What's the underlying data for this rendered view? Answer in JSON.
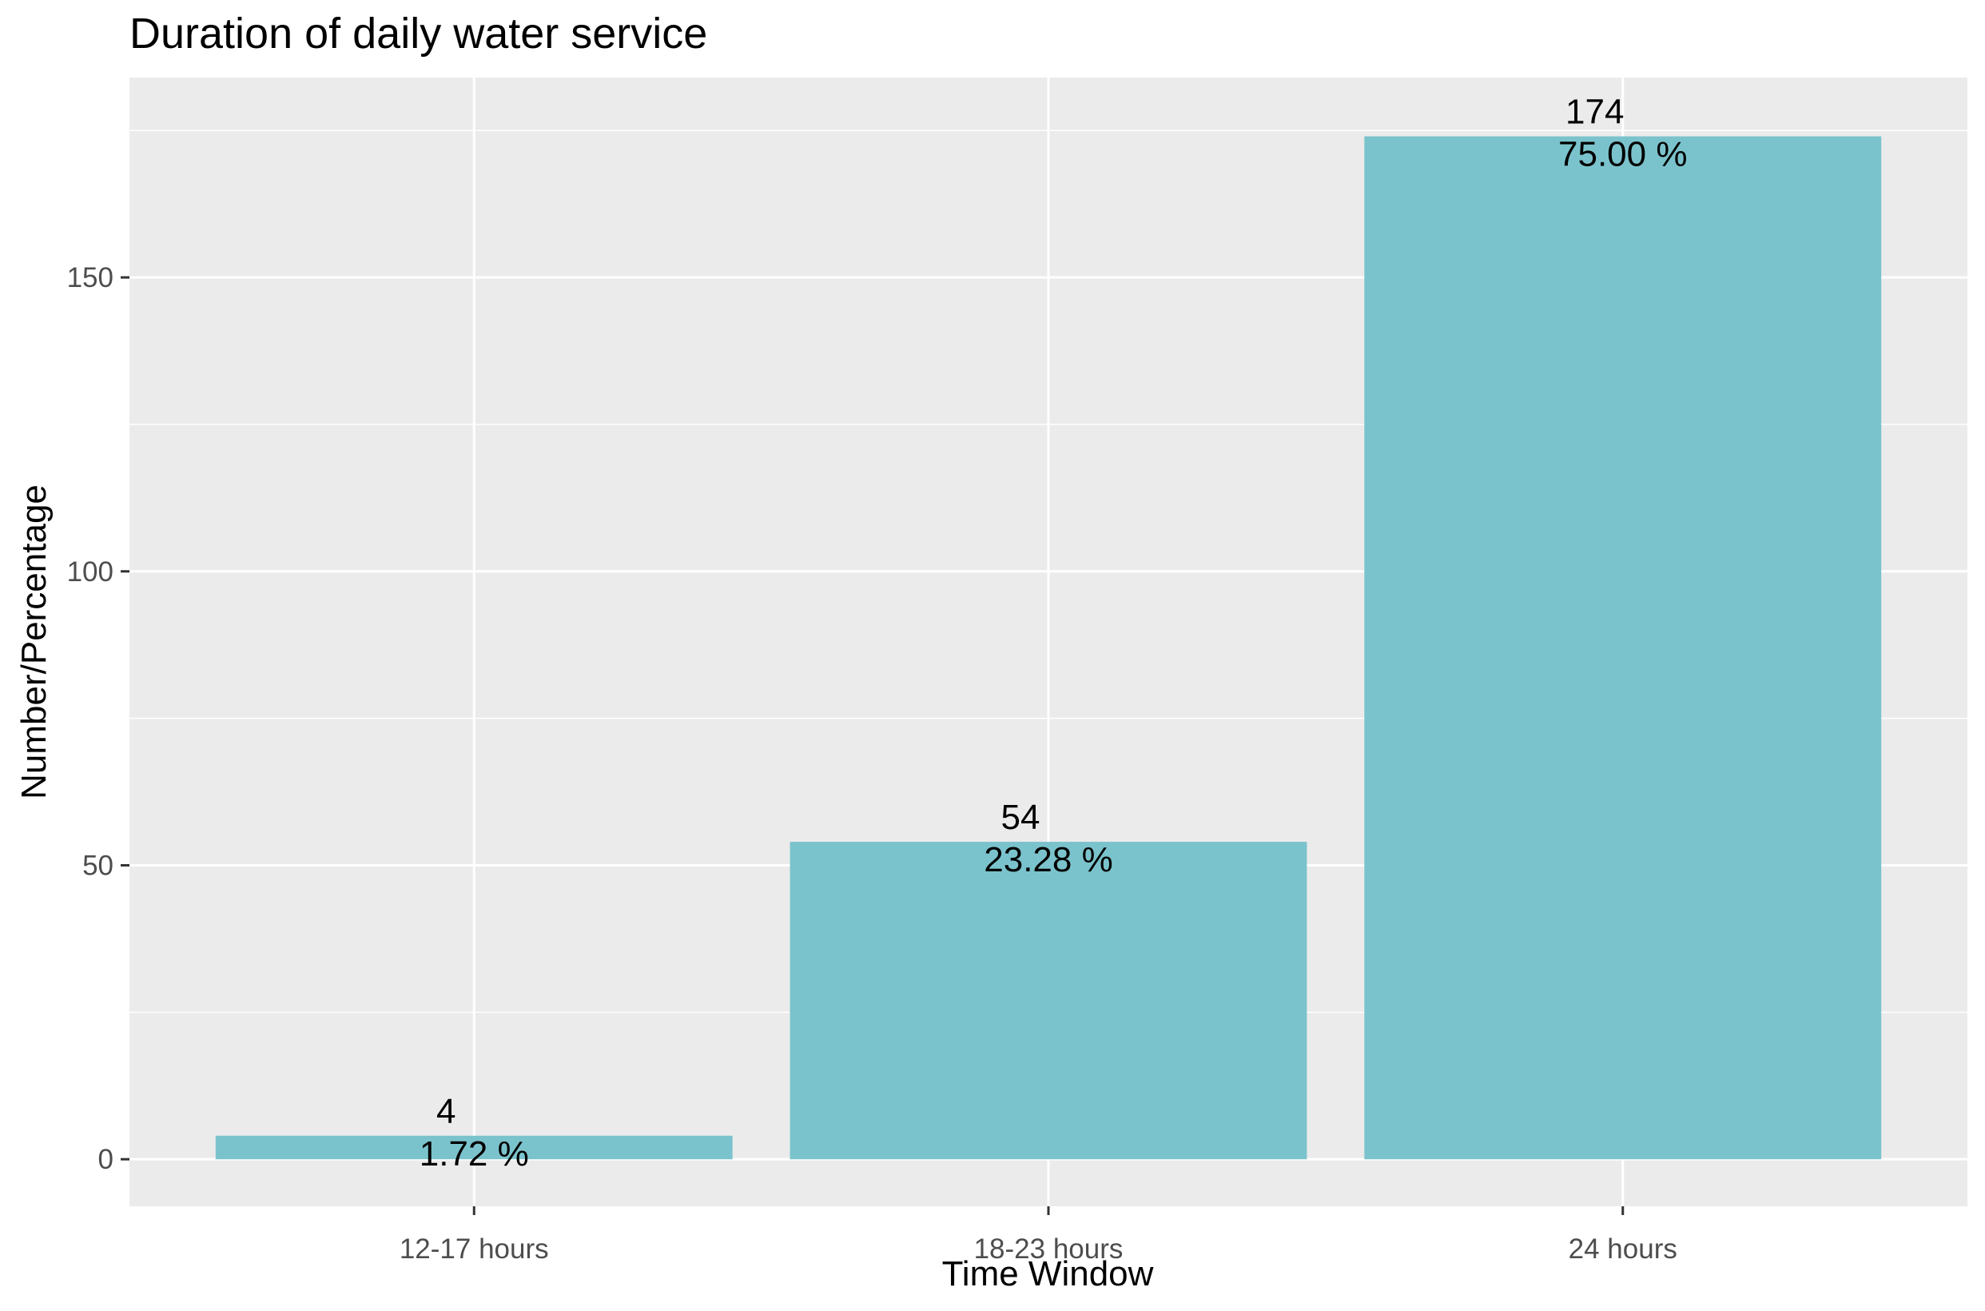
{
  "chart_data": {
    "type": "bar",
    "title": "Duration of daily water service",
    "xlabel": "Time Window",
    "ylabel": "Number/Percentage",
    "categories": [
      "12-17 hours",
      "18-23 hours",
      "24 hours"
    ],
    "values": [
      4,
      54,
      174
    ],
    "percent_labels": [
      "1.72 %",
      "23.28 %",
      "75.00 %"
    ],
    "count_labels": [
      "4",
      "54",
      "174"
    ],
    "ylim": [
      -8,
      184
    ],
    "yticks": [
      0,
      50,
      100,
      150
    ],
    "ytick_labels": [
      "0",
      "50",
      "100",
      "150"
    ],
    "grid": true,
    "colors": {
      "bar": "#7bc3cc",
      "panel": "#ebebeb",
      "grid": "#ffffff"
    }
  }
}
